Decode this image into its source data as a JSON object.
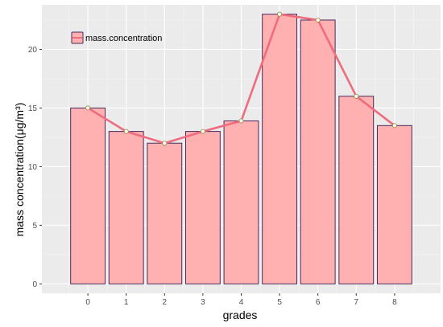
{
  "chart_data": {
    "type": "bar",
    "xlabel": "grades",
    "ylabel": "mass  concentration(μg/m³)",
    "categories": [
      "0",
      "1",
      "2",
      "3",
      "4",
      "5",
      "6",
      "7",
      "8"
    ],
    "values": [
      15.0,
      13.0,
      12.0,
      13.0,
      13.9,
      23.0,
      22.5,
      16.0,
      13.5
    ],
    "y_ticks": [
      "0",
      "5",
      "10",
      "15",
      "20"
    ],
    "ylim": [
      -0.8,
      23.8
    ],
    "grid": true,
    "legend_position": "top-left",
    "series": [
      {
        "name": "mass.concentration",
        "type": "line",
        "values": [
          15.0,
          13.0,
          12.0,
          13.0,
          13.9,
          23.0,
          22.5,
          16.0,
          13.5
        ]
      }
    ],
    "colors": {
      "panel_bg": "#ebebeb",
      "grid_major": "#ffffff",
      "grid_minor": "#f5f5f5",
      "bar_fill": "#ffb0b0",
      "bar_stroke": "#4b2a5e",
      "line": "#ef6b7e",
      "point_fill": "#fffde0",
      "point_stroke": "#8a8a5a"
    }
  }
}
